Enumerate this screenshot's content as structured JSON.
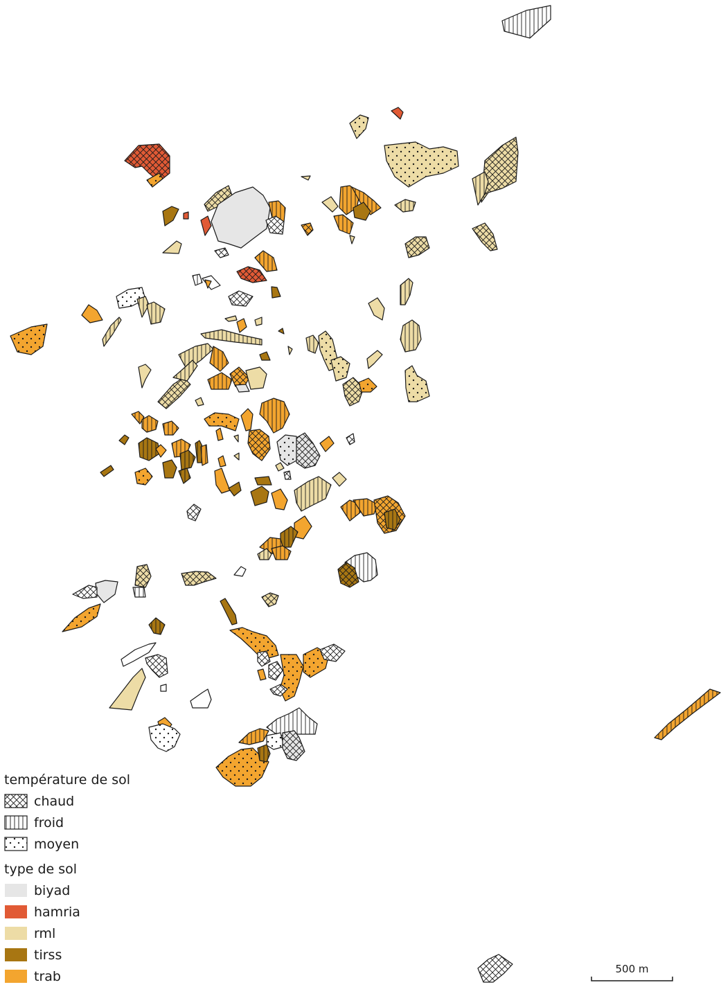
{
  "legend": {
    "temperature_title": "température de sol",
    "temperature_items": [
      {
        "label": "chaud",
        "pattern": "crosshatch"
      },
      {
        "label": "froid",
        "pattern": "vertical-lines"
      },
      {
        "label": "moyen",
        "pattern": "dots"
      }
    ],
    "soil_title": "type de sol",
    "soil_items": [
      {
        "label": "biyad",
        "color": "#e6e6e6"
      },
      {
        "label": "hamria",
        "color": "#e15a35"
      },
      {
        "label": "rml",
        "color": "#eddca6"
      },
      {
        "label": "tirss",
        "color": "#a87612"
      },
      {
        "label": "trab",
        "color": "#f3a52f"
      }
    ]
  },
  "scale_bar": {
    "label": "500 m"
  },
  "colors": {
    "biyad": "#e6e6e6",
    "hamria": "#e15a35",
    "rml": "#eddca6",
    "tirss": "#a87612",
    "trab": "#f3a52f",
    "none": "#ffffff",
    "outline": "#1a1a1a"
  }
}
